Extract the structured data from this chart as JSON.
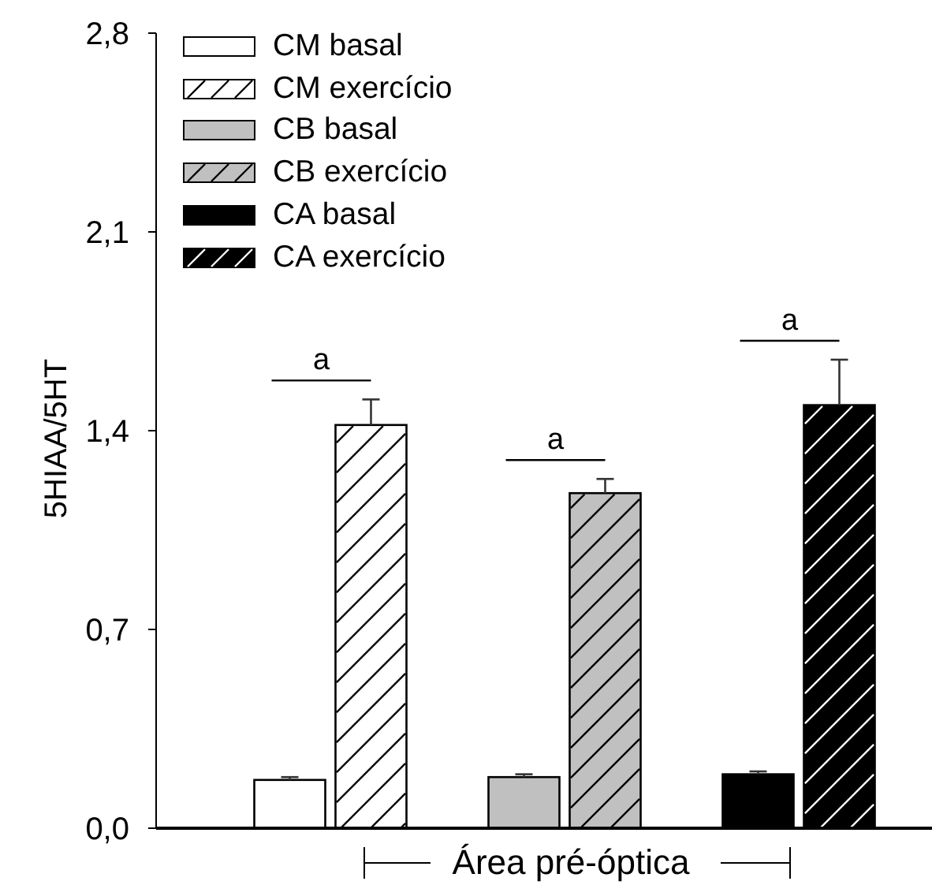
{
  "chart_data": {
    "type": "bar",
    "ylabel": "5HIAA/5HT",
    "categories": [
      "Área pré-óptica"
    ],
    "series": [
      {
        "name": "CM basal",
        "color": "#ffffff",
        "values": [
          0.17
        ],
        "errors": [
          0.01
        ]
      },
      {
        "name": "CM exercício",
        "color": "#ffffff",
        "values": [
          1.42
        ],
        "errors": [
          0.09
        ]
      },
      {
        "name": "CB basal",
        "color": "#c0c0c0",
        "values": [
          0.18
        ],
        "errors": [
          0.01
        ]
      },
      {
        "name": "CB exercício",
        "color": "#c0c0c0",
        "values": [
          1.18
        ],
        "errors": [
          0.05
        ]
      },
      {
        "name": "CA basal",
        "color": "#000000",
        "values": [
          0.19
        ],
        "errors": [
          0.01
        ]
      },
      {
        "name": "CA exercício",
        "color": "#000000",
        "values": [
          1.49
        ],
        "errors": [
          0.16
        ]
      }
    ],
    "ylim": [
      0,
      2.8
    ],
    "yticks": [
      {
        "value": 0,
        "label": "0,0"
      },
      {
        "value": 0.7,
        "label": "0,7"
      },
      {
        "value": 1.4,
        "label": "1,4"
      },
      {
        "value": 2.1,
        "label": "2,1"
      },
      {
        "value": 2.8,
        "label": "2,8"
      }
    ],
    "annotations": [
      "a",
      "a",
      "a"
    ],
    "legend": "top left"
  }
}
